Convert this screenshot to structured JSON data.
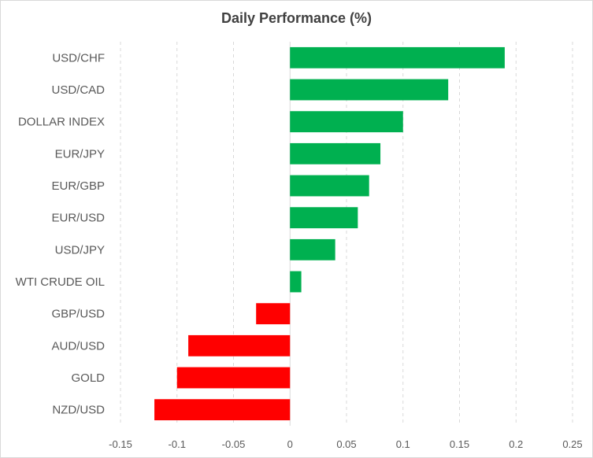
{
  "chart_data": {
    "type": "bar",
    "orientation": "horizontal",
    "title": "Daily Performance  (%)",
    "xlabel": "",
    "ylabel": "",
    "categories": [
      "USD/CHF",
      "USD/CAD",
      "DOLLAR INDEX",
      "EUR/JPY",
      "EUR/GBP",
      "EUR/USD",
      "USD/JPY",
      "WTI CRUDE OIL",
      "GBP/USD",
      "AUD/USD",
      "GOLD",
      "NZD/USD"
    ],
    "values": [
      0.19,
      0.14,
      0.1,
      0.08,
      0.07,
      0.06,
      0.04,
      0.01,
      -0.03,
      -0.09,
      -0.1,
      -0.12
    ],
    "xlim": [
      -0.15,
      0.25
    ],
    "xticks": [
      -0.15,
      -0.1,
      -0.05,
      0,
      0.05,
      0.1,
      0.15,
      0.2,
      0.25
    ],
    "xtick_labels": [
      "-0.15",
      "-0.1",
      "-0.05",
      "0",
      "0.05",
      "0.1",
      "0.15",
      "0.2",
      "0.25"
    ],
    "grid": "vertical dashed",
    "legend": "none",
    "colors": {
      "positive": "#00b050",
      "negative": "#ff0000",
      "grid": "#d9d9d9",
      "text": "#595959"
    }
  }
}
